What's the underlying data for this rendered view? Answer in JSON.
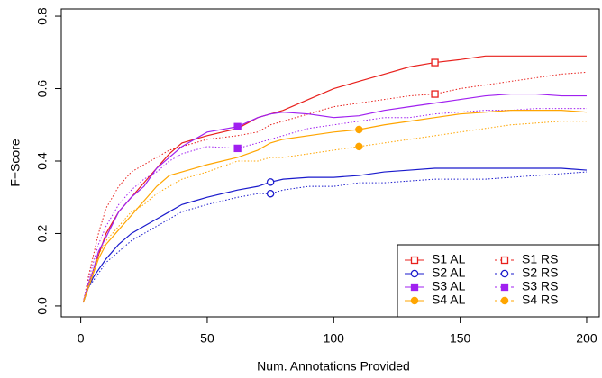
{
  "chart_data": {
    "type": "line",
    "xlabel": "Num. Annotations Provided",
    "ylabel": "F−Score",
    "xlim": [
      -7.7,
      205
    ],
    "ylim": [
      -0.03,
      0.82
    ],
    "xticks": [
      0,
      50,
      100,
      150,
      200
    ],
    "yticks": [
      {
        "value": 0,
        "label": "0.0"
      },
      {
        "value": 0.2,
        "label": "0.2"
      },
      {
        "value": 0.4,
        "label": "0.4"
      },
      {
        "value": 0.6,
        "label": "0.6"
      },
      {
        "value": 0.8,
        "label": "0.8"
      }
    ],
    "legend": "bottom-right",
    "x": [
      1,
      3,
      5,
      7,
      10,
      15,
      20,
      25,
      30,
      35,
      40,
      45,
      50,
      62,
      70,
      75,
      80,
      90,
      100,
      110,
      120,
      130,
      140,
      150,
      160,
      170,
      180,
      190,
      200
    ],
    "series": [
      {
        "name": "S1 AL",
        "color": "#e8201c",
        "linestyle": "solid",
        "marker": "square-open",
        "marker_x": 140,
        "values": [
          0.01,
          0.06,
          0.1,
          0.14,
          0.2,
          0.26,
          0.3,
          0.34,
          0.38,
          0.42,
          0.45,
          0.46,
          0.47,
          0.49,
          0.52,
          0.53,
          0.54,
          0.57,
          0.6,
          0.62,
          0.64,
          0.66,
          0.672,
          0.68,
          0.69,
          0.69,
          0.69,
          0.69,
          0.69
        ]
      },
      {
        "name": "S1 RS",
        "color": "#e8201c",
        "linestyle": "dotted",
        "marker": "square-open",
        "marker_x": 140,
        "values": [
          0.01,
          0.08,
          0.14,
          0.2,
          0.27,
          0.33,
          0.37,
          0.39,
          0.41,
          0.43,
          0.44,
          0.45,
          0.46,
          0.47,
          0.48,
          0.5,
          0.51,
          0.53,
          0.55,
          0.56,
          0.57,
          0.58,
          0.585,
          0.6,
          0.61,
          0.62,
          0.63,
          0.64,
          0.645
        ]
      },
      {
        "name": "S2 AL",
        "color": "#1a1acc",
        "linestyle": "solid",
        "marker": "circle-open",
        "marker_x": 75,
        "values": [
          0.01,
          0.05,
          0.08,
          0.1,
          0.13,
          0.17,
          0.2,
          0.22,
          0.24,
          0.26,
          0.28,
          0.29,
          0.3,
          0.32,
          0.33,
          0.342,
          0.35,
          0.355,
          0.355,
          0.36,
          0.37,
          0.375,
          0.38,
          0.38,
          0.38,
          0.38,
          0.38,
          0.38,
          0.375
        ]
      },
      {
        "name": "S2 RS",
        "color": "#1a1acc",
        "linestyle": "dotted",
        "marker": "circle-open",
        "marker_x": 75,
        "values": [
          0.01,
          0.05,
          0.07,
          0.09,
          0.12,
          0.15,
          0.18,
          0.2,
          0.22,
          0.24,
          0.26,
          0.27,
          0.28,
          0.3,
          0.31,
          0.31,
          0.32,
          0.33,
          0.33,
          0.34,
          0.34,
          0.345,
          0.35,
          0.35,
          0.35,
          0.355,
          0.36,
          0.365,
          0.37
        ]
      },
      {
        "name": "S3 AL",
        "color": "#a020f0",
        "linestyle": "solid",
        "marker": "square-filled",
        "marker_x": 62,
        "values": [
          0.01,
          0.06,
          0.1,
          0.15,
          0.19,
          0.26,
          0.3,
          0.33,
          0.38,
          0.41,
          0.44,
          0.46,
          0.48,
          0.495,
          0.52,
          0.53,
          0.535,
          0.53,
          0.52,
          0.525,
          0.54,
          0.55,
          0.56,
          0.57,
          0.58,
          0.585,
          0.585,
          0.58,
          0.58
        ]
      },
      {
        "name": "S3 RS",
        "color": "#a020f0",
        "linestyle": "dotted",
        "marker": "square-filled",
        "marker_x": 62,
        "values": [
          0.01,
          0.07,
          0.12,
          0.17,
          0.22,
          0.28,
          0.32,
          0.35,
          0.37,
          0.4,
          0.42,
          0.43,
          0.44,
          0.435,
          0.45,
          0.46,
          0.47,
          0.49,
          0.5,
          0.51,
          0.52,
          0.52,
          0.53,
          0.535,
          0.54,
          0.54,
          0.545,
          0.545,
          0.545
        ]
      },
      {
        "name": "S4 AL",
        "color": "#ffa500",
        "linestyle": "solid",
        "marker": "circle-filled",
        "marker_x": 110,
        "values": [
          0.01,
          0.05,
          0.09,
          0.13,
          0.17,
          0.21,
          0.25,
          0.29,
          0.33,
          0.36,
          0.37,
          0.38,
          0.39,
          0.41,
          0.43,
          0.45,
          0.46,
          0.47,
          0.48,
          0.487,
          0.5,
          0.51,
          0.52,
          0.53,
          0.535,
          0.54,
          0.54,
          0.54,
          0.535
        ]
      },
      {
        "name": "S4 RS",
        "color": "#ffa500",
        "linestyle": "dotted",
        "marker": "circle-filled",
        "marker_x": 110,
        "values": [
          0.01,
          0.06,
          0.1,
          0.14,
          0.18,
          0.22,
          0.26,
          0.28,
          0.31,
          0.33,
          0.35,
          0.36,
          0.37,
          0.4,
          0.4,
          0.41,
          0.41,
          0.42,
          0.43,
          0.44,
          0.45,
          0.46,
          0.47,
          0.48,
          0.49,
          0.5,
          0.505,
          0.51,
          0.51
        ]
      }
    ]
  }
}
